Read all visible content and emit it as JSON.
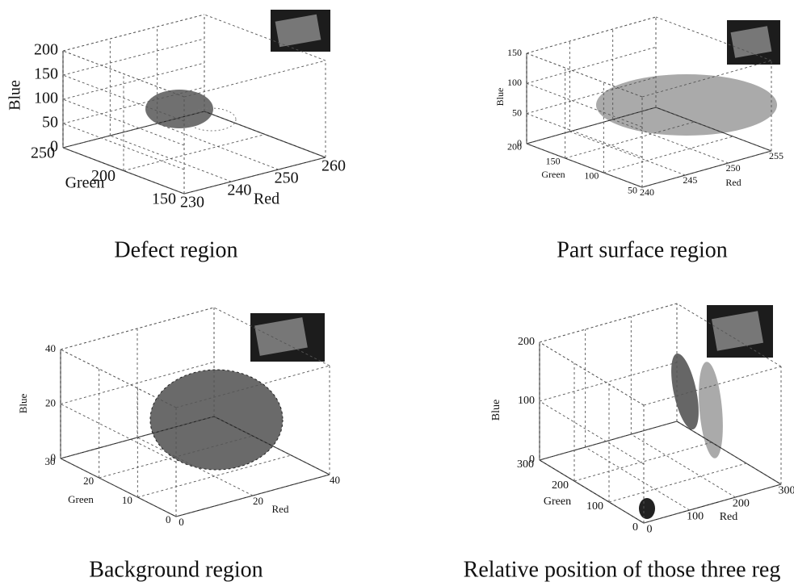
{
  "chart_data": [
    {
      "type": "scatter3d",
      "caption": "Defect region",
      "xlabel": "Red",
      "ylabel": "Green",
      "zlabel": "Blue",
      "xlim": [
        230,
        260
      ],
      "xticks": [
        230,
        240,
        250,
        260
      ],
      "ylim": [
        150,
        250
      ],
      "yticks": [
        150,
        200,
        250
      ],
      "zlim": [
        0,
        200
      ],
      "zticks": [
        0,
        50,
        100,
        150,
        200
      ]
    },
    {
      "type": "scatter3d",
      "caption": "Part surface region",
      "xlabel": "Red",
      "ylabel": "Green",
      "zlabel": "Blue",
      "xlim": [
        240,
        255
      ],
      "xticks": [
        240,
        245,
        250,
        255
      ],
      "ylim": [
        50,
        200
      ],
      "yticks": [
        50,
        100,
        150,
        200
      ],
      "zlim": [
        0,
        150
      ],
      "zticks": [
        0,
        50,
        100,
        150
      ]
    },
    {
      "type": "scatter3d",
      "caption": "Background region",
      "xlabel": "Red",
      "ylabel": "Green",
      "zlabel": "Blue",
      "xlim": [
        0,
        40
      ],
      "xticks": [
        0,
        20,
        40
      ],
      "ylim": [
        0,
        30
      ],
      "yticks": [
        0,
        10,
        20,
        30
      ],
      "zlim": [
        0,
        40
      ],
      "zticks": [
        0,
        20,
        40
      ]
    },
    {
      "type": "scatter3d",
      "caption": "Relative position of those three reg",
      "xlabel": "Red",
      "ylabel": "Green",
      "zlabel": "Blue",
      "xlim": [
        0,
        300
      ],
      "xticks": [
        0,
        100,
        200,
        300
      ],
      "ylim": [
        0,
        300
      ],
      "yticks": [
        0,
        100,
        200,
        300
      ],
      "zlim": [
        0,
        200
      ],
      "zticks": [
        0,
        100,
        200
      ]
    }
  ]
}
